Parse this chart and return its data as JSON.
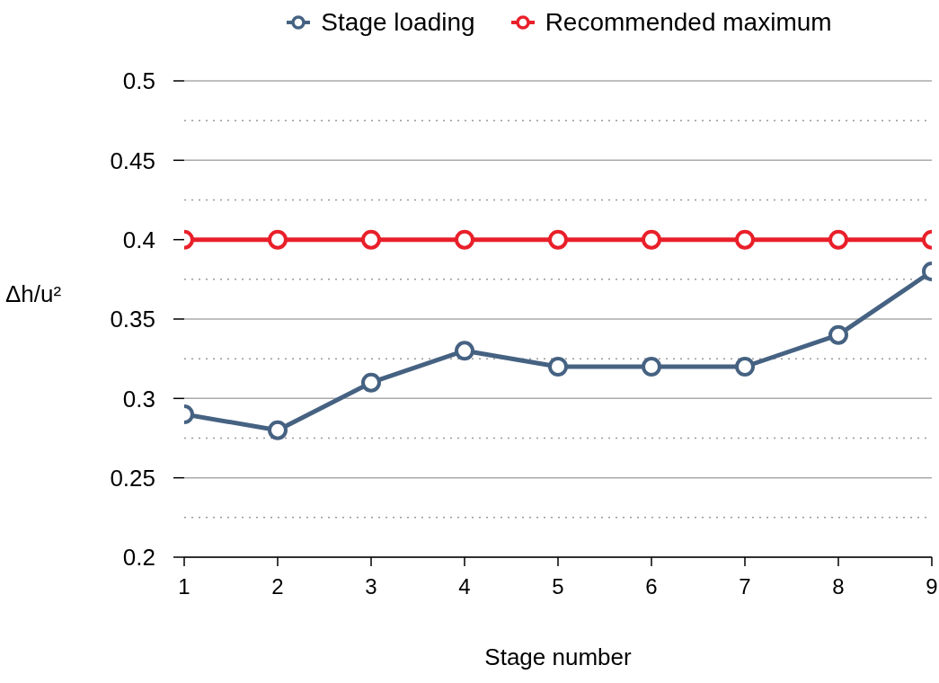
{
  "chart_data": {
    "type": "line",
    "xlabel": "Stage number",
    "ylabel": "Δh/u²",
    "x": [
      1,
      2,
      3,
      4,
      5,
      6,
      7,
      8,
      9
    ],
    "series": [
      {
        "name": "Stage loading",
        "color": "#466282",
        "values": [
          0.29,
          0.28,
          0.31,
          0.33,
          0.32,
          0.32,
          0.32,
          0.34,
          0.38
        ]
      },
      {
        "name": "Recommended maximum",
        "color": "#e8202a",
        "values": [
          0.4,
          0.4,
          0.4,
          0.4,
          0.4,
          0.4,
          0.4,
          0.4,
          0.4
        ]
      }
    ],
    "xlim": [
      1,
      9
    ],
    "xticks": [
      1,
      2,
      3,
      4,
      5,
      6,
      7,
      8,
      9
    ],
    "ylim": [
      0.2,
      0.5
    ],
    "yticks": [
      0.2,
      {
        "value": 0.225,
        "label": null
      },
      0.25,
      {
        "value": 0.275,
        "label": null
      },
      0.3,
      {
        "value": 0.325,
        "label": null
      },
      0.35,
      {
        "value": 0.375,
        "label": null
      },
      0.4,
      {
        "value": 0.425,
        "label": null
      },
      0.45,
      {
        "value": 0.475,
        "label": null
      },
      0.5
    ],
    "grid": "y",
    "legend": "top",
    "marker": "circle",
    "line_style": "solid"
  }
}
